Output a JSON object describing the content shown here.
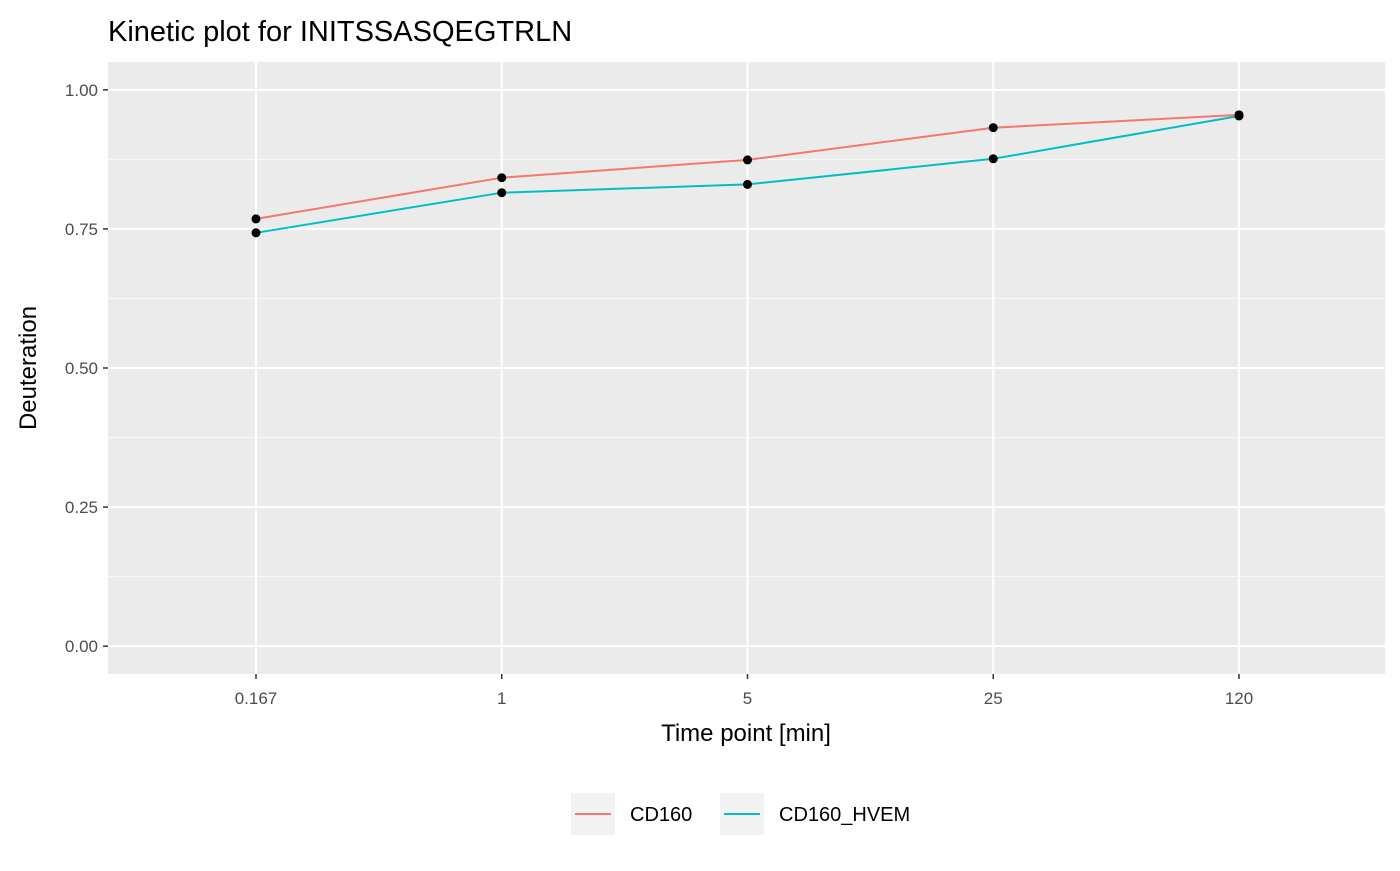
{
  "chart_data": {
    "type": "line",
    "title": "Kinetic plot for INITSSASQEGTRLN",
    "xlabel": "Time point [min]",
    "ylabel": "Deuteration",
    "categories": [
      "0.167",
      "1",
      "5",
      "25",
      "120"
    ],
    "x_scale": "log",
    "ylim": [
      -0.05,
      1.05
    ],
    "y_ticks": [
      0.0,
      0.25,
      0.5,
      0.75,
      1.0
    ],
    "y_tick_labels": [
      "0.00",
      "0.25",
      "0.50",
      "0.75",
      "1.00"
    ],
    "grid": true,
    "legend_position": "bottom",
    "series": [
      {
        "name": "CD160",
        "color": "#F8766D",
        "values": [
          0.768,
          0.842,
          0.874,
          0.932,
          0.955
        ]
      },
      {
        "name": "CD160_HVEM",
        "color": "#00BFC4",
        "values": [
          0.743,
          0.815,
          0.83,
          0.876,
          0.953
        ]
      }
    ],
    "point_color": "#000000",
    "panel_background": "#EBEBEB",
    "grid_color": "#FFFFFF"
  }
}
